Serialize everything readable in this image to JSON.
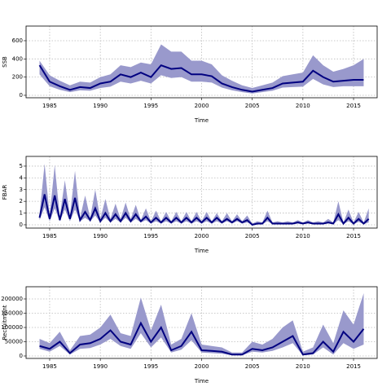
{
  "chart_data": [
    {
      "type": "band-line",
      "xlabel": "Time",
      "ylabel": "SSB",
      "xlim": [
        1982.67,
        2017.33
      ],
      "xticks": [
        1985,
        1990,
        1995,
        2000,
        2005,
        2010,
        2015
      ],
      "ylim": [
        -27,
        761
      ],
      "yticks": [
        0,
        200,
        400,
        600
      ],
      "grid": true,
      "x": [
        1984,
        1985,
        1986,
        1987,
        1988,
        1989,
        1990,
        1991,
        1992,
        1993,
        1994,
        1995,
        1996,
        1997,
        1998,
        1999,
        2000,
        2001,
        2002,
        2003,
        2004,
        2005,
        2006,
        2007,
        2008,
        2009,
        2010,
        2011,
        2012,
        2013,
        2014,
        2015,
        2016
      ],
      "color": "#000080",
      "band_color": "#9999cc",
      "values": [
        330,
        150,
        100,
        60,
        90,
        80,
        130,
        150,
        230,
        200,
        250,
        200,
        330,
        290,
        300,
        230,
        230,
        210,
        130,
        90,
        60,
        40,
        60,
        80,
        130,
        140,
        150,
        270,
        200,
        150,
        160,
        170,
        170
      ],
      "lower": [
        230,
        100,
        60,
        35,
        55,
        50,
        80,
        95,
        150,
        130,
        160,
        130,
        220,
        190,
        200,
        150,
        150,
        140,
        85,
        55,
        35,
        20,
        35,
        50,
        85,
        90,
        95,
        180,
        120,
        90,
        100,
        100,
        100
      ],
      "upper": [
        380,
        220,
        160,
        110,
        150,
        140,
        200,
        230,
        330,
        310,
        360,
        340,
        560,
        480,
        480,
        380,
        380,
        340,
        220,
        160,
        110,
        80,
        110,
        140,
        210,
        230,
        250,
        440,
        330,
        260,
        290,
        330,
        400
      ]
    },
    {
      "type": "band-line",
      "xlabel": "Time",
      "ylabel": "FBAR",
      "xlim": [
        1982.67,
        2017.33
      ],
      "xticks": [
        1985,
        1990,
        1995,
        2000,
        2005,
        2010,
        2015
      ],
      "ylim": [
        -0.28,
        5.83
      ],
      "yticks": [
        0,
        1,
        2,
        3,
        4,
        5
      ],
      "grid": true,
      "x": [
        1984,
        1984.5,
        1985,
        1985.5,
        1986,
        1986.5,
        1987,
        1987.5,
        1988,
        1988.5,
        1989,
        1989.5,
        1990,
        1990.5,
        1991,
        1991.5,
        1992,
        1992.5,
        1993,
        1993.5,
        1994,
        1994.5,
        1995,
        1995.5,
        1996,
        1996.5,
        1997,
        1997.5,
        1998,
        1998.5,
        1999,
        1999.5,
        2000,
        2000.5,
        2001,
        2001.5,
        2002,
        2002.5,
        2003,
        2003.5,
        2004,
        2004.5,
        2005,
        2005.5,
        2006,
        2006.5,
        2007,
        2007.5,
        2008,
        2008.5,
        2009,
        2009.5,
        2010,
        2010.5,
        2011,
        2011.5,
        2012,
        2012.5,
        2013,
        2013.5,
        2014,
        2014.5,
        2015,
        2015.5,
        2016,
        2016.5
      ],
      "color": "#000080",
      "band_color": "#9999cc",
      "values": [
        0.6,
        2.6,
        0.5,
        2.5,
        0.4,
        2.2,
        0.5,
        2.3,
        0.4,
        1.1,
        0.4,
        1.4,
        0.3,
        1.0,
        0.3,
        0.9,
        0.3,
        1.0,
        0.3,
        0.9,
        0.3,
        0.7,
        0.2,
        0.6,
        0.2,
        0.6,
        0.2,
        0.6,
        0.2,
        0.6,
        0.2,
        0.6,
        0.2,
        0.6,
        0.2,
        0.6,
        0.2,
        0.5,
        0.2,
        0.5,
        0.2,
        0.4,
        0.0,
        0.1,
        0.1,
        0.6,
        0.1,
        0.1,
        0.1,
        0.1,
        0.1,
        0.2,
        0.1,
        0.2,
        0.1,
        0.1,
        0.1,
        0.2,
        0.1,
        0.9,
        0.1,
        0.6,
        0.1,
        0.5,
        0.1,
        0.5
      ],
      "lower": [
        0.4,
        1.5,
        0.3,
        1.4,
        0.3,
        1.3,
        0.3,
        1.3,
        0.3,
        0.6,
        0.3,
        0.8,
        0.2,
        0.6,
        0.2,
        0.5,
        0.2,
        0.6,
        0.2,
        0.5,
        0.2,
        0.4,
        0.1,
        0.3,
        0.1,
        0.3,
        0.1,
        0.3,
        0.1,
        0.3,
        0.1,
        0.3,
        0.1,
        0.3,
        0.1,
        0.3,
        0.1,
        0.3,
        0.1,
        0.3,
        0.1,
        0.2,
        0,
        0.05,
        0.05,
        0.3,
        0.05,
        0.05,
        0.05,
        0.05,
        0.05,
        0.1,
        0.05,
        0.1,
        0.05,
        0.05,
        0.05,
        0.1,
        0.05,
        0.4,
        0.05,
        0.3,
        0.05,
        0.25,
        0.05,
        0.2
      ],
      "upper": [
        0.9,
        5.2,
        0.8,
        5.1,
        0.7,
        3.8,
        0.8,
        4.6,
        0.6,
        2.5,
        0.6,
        3.0,
        0.5,
        2.2,
        0.5,
        1.8,
        0.5,
        1.9,
        0.5,
        1.7,
        0.4,
        1.4,
        0.3,
        1.2,
        0.3,
        1.1,
        0.3,
        1.1,
        0.3,
        1.1,
        0.3,
        1.1,
        0.3,
        1.1,
        0.3,
        1.0,
        0.3,
        1.0,
        0.3,
        0.9,
        0.3,
        0.8,
        0.1,
        0.3,
        0.2,
        1.2,
        0.2,
        0.3,
        0.2,
        0.3,
        0.2,
        0.4,
        0.2,
        0.4,
        0.2,
        0.3,
        0.2,
        0.5,
        0.2,
        2.0,
        0.2,
        1.3,
        0.2,
        1.1,
        0.2,
        1.4
      ]
    },
    {
      "type": "band-line",
      "xlabel": "Time",
      "ylabel": "Recruitment",
      "xlim": [
        1982.67,
        2017.33
      ],
      "xticks": [
        1985,
        1990,
        1995,
        2000,
        2005,
        2010,
        2015
      ],
      "ylim": [
        -8571,
        242857
      ],
      "yticks": [
        0,
        50000,
        100000,
        150000,
        200000
      ],
      "grid": true,
      "x": [
        1984,
        1985,
        1986,
        1987,
        1988,
        1989,
        1990,
        1991,
        1992,
        1993,
        1994,
        1995,
        1996,
        1997,
        1998,
        1999,
        2000,
        2001,
        2002,
        2003,
        2004,
        2005,
        2006,
        2007,
        2008,
        2009,
        2010,
        2011,
        2012,
        2013,
        2014,
        2015,
        2016
      ],
      "color": "#000080",
      "band_color": "#9999cc",
      "values": [
        35000,
        25000,
        50000,
        10000,
        40000,
        45000,
        60000,
        90000,
        50000,
        40000,
        115000,
        50000,
        100000,
        20000,
        35000,
        85000,
        20000,
        18000,
        15000,
        5000,
        5000,
        25000,
        20000,
        30000,
        50000,
        70000,
        5000,
        10000,
        50000,
        15000,
        85000,
        50000,
        95000
      ],
      "lower": [
        25000,
        15000,
        35000,
        5000,
        25000,
        28000,
        40000,
        60000,
        35000,
        25000,
        80000,
        30000,
        65000,
        12000,
        22000,
        55000,
        12000,
        10000,
        8000,
        2000,
        2000,
        15000,
        12000,
        18000,
        30000,
        45000,
        2000,
        5000,
        30000,
        5000,
        45000,
        25000,
        40000
      ],
      "upper": [
        60000,
        45000,
        85000,
        20000,
        70000,
        75000,
        100000,
        145000,
        80000,
        70000,
        205000,
        90000,
        180000,
        40000,
        60000,
        150000,
        40000,
        35000,
        30000,
        12000,
        12000,
        50000,
        40000,
        60000,
        100000,
        125000,
        15000,
        30000,
        110000,
        45000,
        160000,
        110000,
        220000
      ]
    }
  ]
}
